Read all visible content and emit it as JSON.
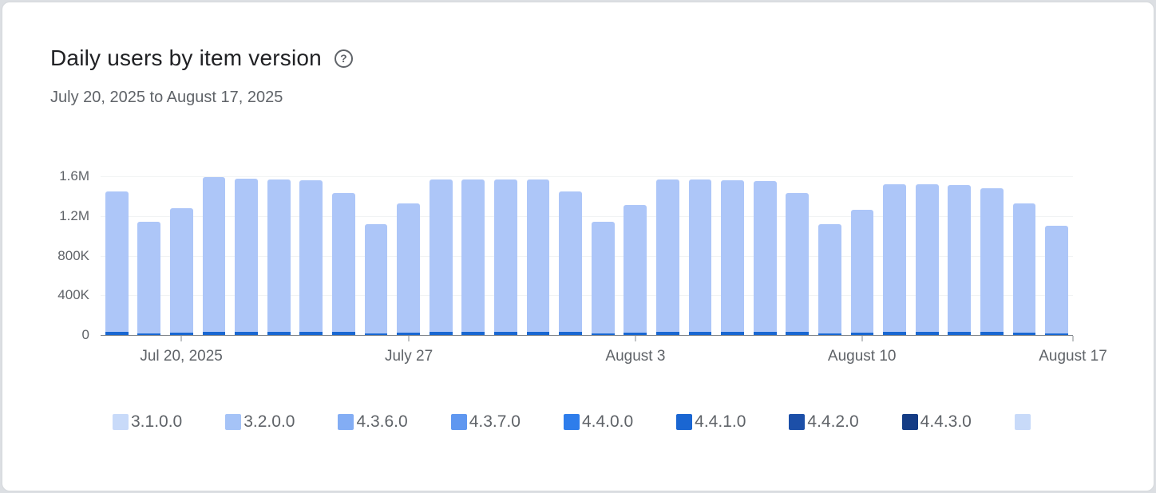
{
  "colors": {
    "page_background": "#dcdfe3",
    "card_background": "#ffffff",
    "card_border": "#d5d8dc",
    "title_text": "#202124",
    "muted_text": "#5f6368",
    "axis_line": "#83888d",
    "gridline": "#f1f3f4"
  },
  "header": {
    "title": "Daily users by item version",
    "help_glyph": "?",
    "date_range": "July 20, 2025 to August 17, 2025"
  },
  "chart_data": {
    "type": "bar",
    "stacked": true,
    "title": "Daily users by item version",
    "subtitle": "July 20, 2025 to August 17, 2025",
    "legend_position": "bottom",
    "grid": true,
    "ylim": [
      0,
      1600000
    ],
    "y_ticks": [
      {
        "label": "1.6M",
        "value": 1600000
      },
      {
        "label": "1.2M",
        "value": 1200000
      },
      {
        "label": "800K",
        "value": 800000
      },
      {
        "label": "400K",
        "value": 400000
      },
      {
        "label": "0",
        "value": 0
      }
    ],
    "x_ticks": [
      {
        "label": "Jul 20, 2025",
        "position": 0.083
      },
      {
        "label": "July 27",
        "position": 0.317
      },
      {
        "label": "August 3",
        "position": 0.55
      },
      {
        "label": "August 10",
        "position": 0.783
      },
      {
        "label": "August 17",
        "position": 1.0
      }
    ],
    "bar_count": 30,
    "bar_colors": {
      "main": "#adc6f8",
      "bottom": "#1967d2"
    },
    "totals": [
      1450000,
      1140000,
      1280000,
      1590000,
      1580000,
      1570000,
      1560000,
      1430000,
      1120000,
      1330000,
      1570000,
      1570000,
      1570000,
      1570000,
      1450000,
      1140000,
      1310000,
      1570000,
      1570000,
      1560000,
      1550000,
      1430000,
      1120000,
      1260000,
      1520000,
      1520000,
      1510000,
      1480000,
      1330000,
      1100000
    ],
    "bottom_segment": [
      30000,
      20000,
      25000,
      32000,
      32000,
      32000,
      31000,
      30000,
      20000,
      25000,
      32000,
      32000,
      32000,
      31000,
      30000,
      20000,
      25000,
      32000,
      32000,
      31000,
      31000,
      30000,
      20000,
      25000,
      32000,
      32000,
      31000,
      30000,
      28000,
      18000
    ],
    "legend": [
      {
        "label": "3.1.0.0",
        "color": "#c8daf9"
      },
      {
        "label": "3.2.0.0",
        "color": "#a5c3f7"
      },
      {
        "label": "4.3.6.0",
        "color": "#83adf4"
      },
      {
        "label": "4.3.7.0",
        "color": "#5f97f0"
      },
      {
        "label": "4.4.0.0",
        "color": "#2e7deb"
      },
      {
        "label": "4.4.1.0",
        "color": "#1a66d2"
      },
      {
        "label": "4.4.2.0",
        "color": "#1c4fa8"
      },
      {
        "label": "4.4.3.0",
        "color": "#143c85"
      },
      {
        "label": "",
        "color": "#c8daf9"
      }
    ]
  }
}
